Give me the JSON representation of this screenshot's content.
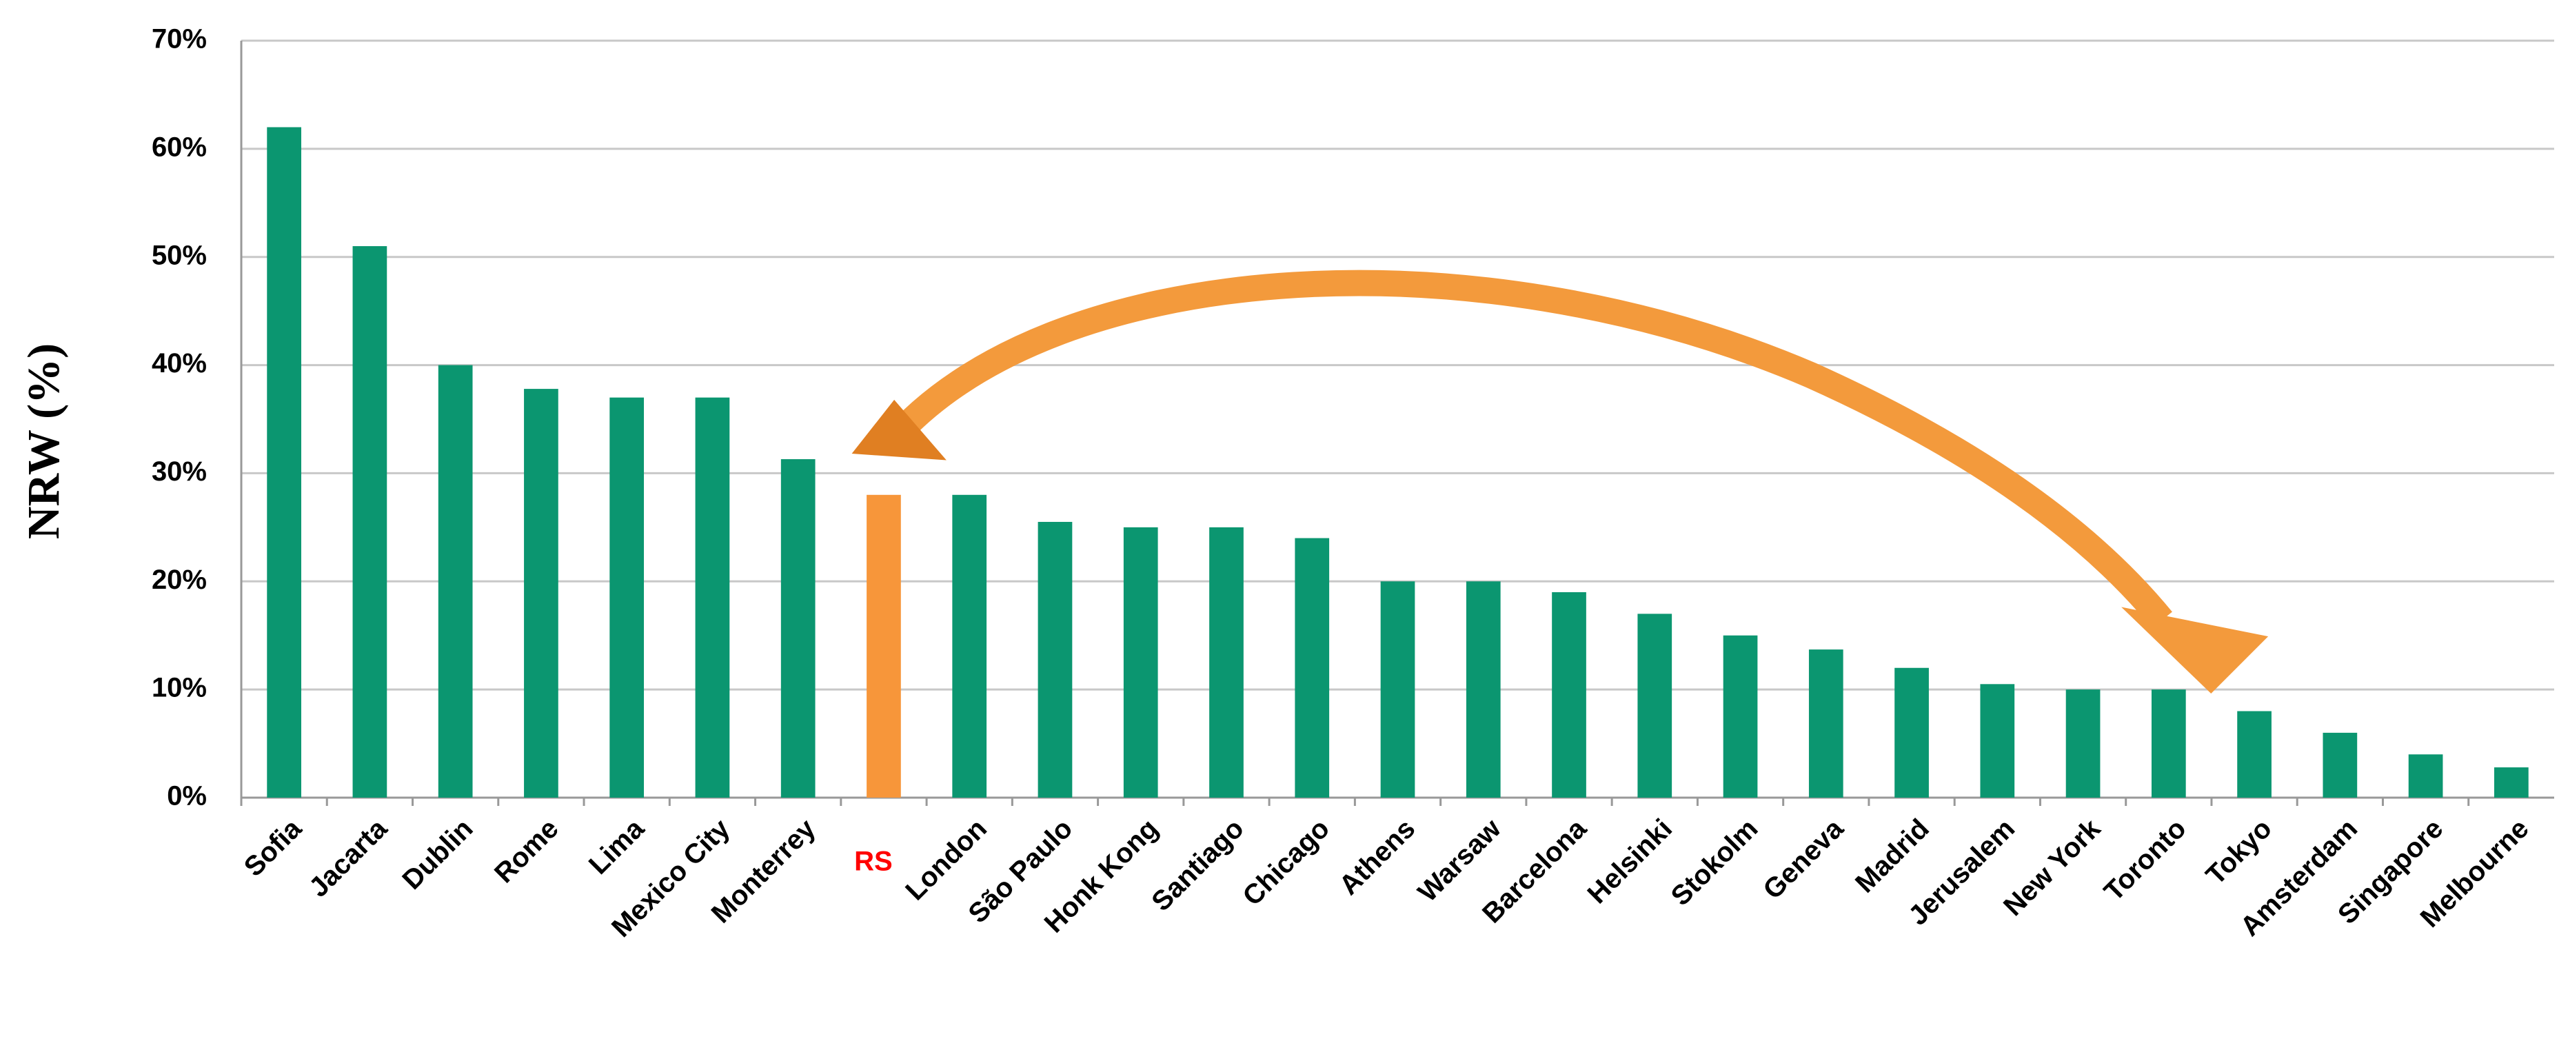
{
  "chart_data": {
    "type": "bar",
    "y_label": "NRW (%)",
    "categories": [
      "Sofia",
      "Jacarta",
      "Dublin",
      "Rome",
      "Lima",
      "Mexico City",
      "Monterrey",
      "RS",
      "London",
      "São Paulo",
      "Honk Kong",
      "Santiago",
      "Chicago",
      "Athens",
      "Warsaw",
      "Barcelona",
      "Helsinki",
      "Stokolm",
      "Geneva",
      "Madrid",
      "Jerusalem",
      "New York",
      "Toronto",
      "Tokyo",
      "Amsterdam",
      "Singapore",
      "Melbourne"
    ],
    "values": [
      62,
      51,
      40,
      37.8,
      37,
      37,
      31.3,
      28,
      28,
      25.5,
      25,
      25,
      24,
      20,
      20,
      19,
      17,
      15,
      13.7,
      12,
      10.5,
      10,
      10,
      8,
      6,
      4,
      2.8
    ],
    "colors": [
      "#0b9670",
      "#0b9670",
      "#0b9670",
      "#0b9670",
      "#0b9670",
      "#0b9670",
      "#0b9670",
      "#f7963a",
      "#0b9670",
      "#0b9670",
      "#0b9670",
      "#0b9670",
      "#0b9670",
      "#0b9670",
      "#0b9670",
      "#0b9670",
      "#0b9670",
      "#0b9670",
      "#0b9670",
      "#0b9670",
      "#0b9670",
      "#0b9670",
      "#0b9670",
      "#0b9670",
      "#0b9670",
      "#0b9670",
      "#0b9670"
    ],
    "label_colors": [
      "#000000",
      "#000000",
      "#000000",
      "#000000",
      "#000000",
      "#000000",
      "#000000",
      "#ff0000",
      "#000000",
      "#000000",
      "#000000",
      "#000000",
      "#000000",
      "#000000",
      "#000000",
      "#000000",
      "#000000",
      "#000000",
      "#000000",
      "#000000",
      "#000000",
      "#000000",
      "#000000",
      "#000000",
      "#000000",
      "#000000",
      "#000000"
    ],
    "ylim": [
      0,
      70
    ],
    "yticks": [
      {
        "value": 0,
        "label": "0%"
      },
      {
        "value": 10,
        "label": "10%"
      },
      {
        "value": 20,
        "label": "20%"
      },
      {
        "value": 30,
        "label": "30%"
      },
      {
        "value": 40,
        "label": "40%"
      },
      {
        "value": 50,
        "label": "50%"
      },
      {
        "value": 60,
        "label": "60%"
      },
      {
        "value": 70,
        "label": "70%"
      }
    ],
    "grid": true
  }
}
